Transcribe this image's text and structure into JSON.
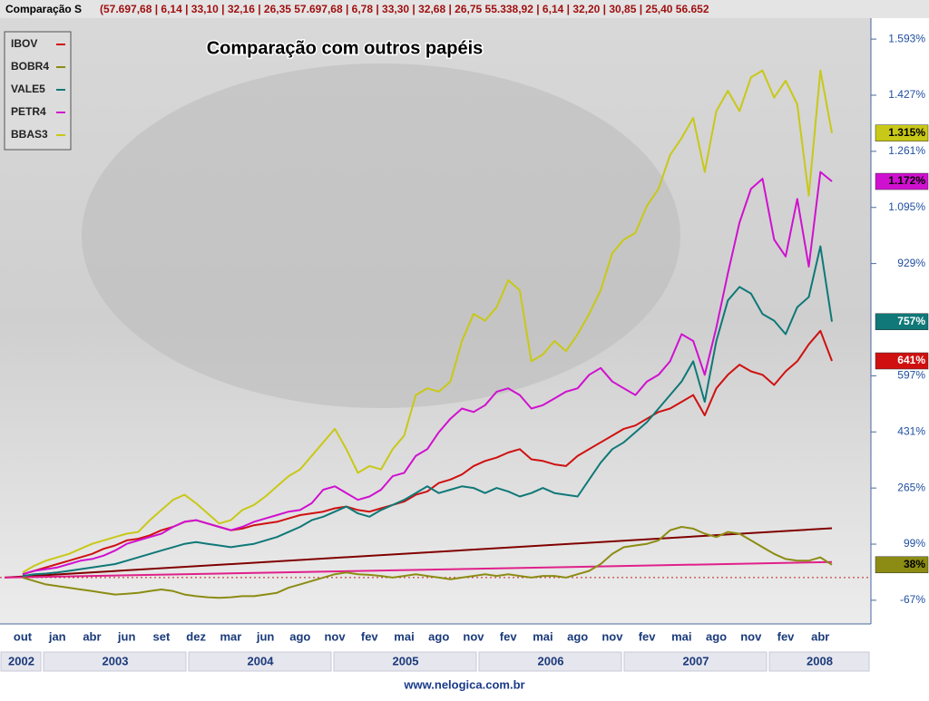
{
  "header": {
    "label": "Comparação S",
    "values": "(57.697,68 | 6,14 | 33,10 | 32,16 | 26,35  57.697,68 | 6,78 | 33,30 | 32,68 | 26,75  55.338,92 | 6,14 | 32,20 | 30,85 | 25,40  56.652"
  },
  "footer": "www.nelogica.com.br",
  "chart_data": {
    "type": "line",
    "title": "Comparação com outros papéis",
    "categories": [
      "out",
      null,
      null,
      "jan",
      null,
      null,
      "abr",
      null,
      null,
      "jun",
      null,
      null,
      "set",
      null,
      null,
      "dez",
      null,
      null,
      "mar",
      null,
      null,
      "jun",
      null,
      null,
      "ago",
      null,
      null,
      "nov",
      null,
      null,
      "fev",
      null,
      null,
      "mai",
      null,
      null,
      "ago",
      null,
      null,
      "nov",
      null,
      null,
      "fev",
      null,
      null,
      "mai",
      null,
      null,
      "ago",
      null,
      null,
      "nov",
      null,
      null,
      "fev",
      null,
      null,
      "mai",
      null,
      null,
      "ago",
      null,
      null,
      "nov",
      null,
      null,
      "fev",
      null,
      null,
      "abr",
      null
    ],
    "x_years": [
      "2002",
      "2003",
      "2004",
      "2005",
      "2006",
      "2007",
      "2008"
    ],
    "ylim": [
      -137,
      1655
    ],
    "yticks": [
      {
        "value": -67,
        "label": "-67%"
      },
      {
        "value": 99,
        "label": "99%"
      },
      {
        "value": 265,
        "label": "265%"
      },
      {
        "value": 431,
        "label": "431%"
      },
      {
        "value": 597,
        "label": "597%"
      },
      {
        "value": 929,
        "label": "929%"
      },
      {
        "value": 1095,
        "label": "1.095%"
      },
      {
        "value": 1261,
        "label": "1.261%"
      },
      {
        "value": 1427,
        "label": "1.427%"
      },
      {
        "value": 1593,
        "label": "1.593%"
      }
    ],
    "series": [
      {
        "name": "IBOV",
        "color": "#d01010",
        "end_label": "641%",
        "label_text_color": "#ffffff",
        "values": [
          10,
          20,
          30,
          40,
          50,
          60,
          70,
          85,
          95,
          110,
          115,
          125,
          140,
          150,
          165,
          170,
          160,
          150,
          140,
          145,
          155,
          160,
          165,
          175,
          185,
          190,
          195,
          205,
          210,
          200,
          195,
          205,
          215,
          225,
          245,
          255,
          280,
          290,
          305,
          330,
          345,
          355,
          370,
          380,
          350,
          345,
          335,
          330,
          360,
          380,
          400,
          420,
          440,
          450,
          470,
          490,
          500,
          520,
          540,
          480,
          560,
          600,
          630,
          610,
          600,
          570,
          610,
          640,
          690,
          730,
          641
        ]
      },
      {
        "name": "BOBR4",
        "color": "#8c8c14",
        "end_label": "38%",
        "label_text_color": "#000000",
        "values": [
          0,
          -10,
          -20,
          -25,
          -30,
          -35,
          -40,
          -45,
          -50,
          -48,
          -45,
          -40,
          -35,
          -40,
          -50,
          -55,
          -58,
          -60,
          -58,
          -55,
          -55,
          -50,
          -45,
          -30,
          -20,
          -10,
          0,
          10,
          15,
          10,
          8,
          5,
          0,
          5,
          10,
          5,
          0,
          -5,
          0,
          5,
          10,
          5,
          10,
          5,
          0,
          5,
          5,
          0,
          10,
          20,
          40,
          70,
          90,
          95,
          100,
          110,
          140,
          150,
          145,
          130,
          120,
          135,
          130,
          110,
          90,
          70,
          55,
          50,
          50,
          60,
          38
        ]
      },
      {
        "name": "VALE5",
        "color": "#107878",
        "end_label": "757%",
        "label_text_color": "#ffffff",
        "values": [
          5,
          10,
          12,
          15,
          20,
          25,
          30,
          35,
          40,
          50,
          60,
          70,
          80,
          90,
          100,
          105,
          100,
          95,
          90,
          95,
          100,
          110,
          120,
          135,
          150,
          170,
          180,
          195,
          210,
          190,
          180,
          200,
          215,
          230,
          250,
          270,
          250,
          260,
          270,
          265,
          250,
          265,
          255,
          240,
          250,
          265,
          250,
          245,
          240,
          290,
          340,
          380,
          400,
          430,
          460,
          500,
          540,
          580,
          640,
          520,
          700,
          820,
          860,
          840,
          780,
          760,
          720,
          800,
          830,
          980,
          757
        ]
      },
      {
        "name": "PETR4",
        "color": "#d010d0",
        "end_label": "1.172%",
        "label_text_color": "#000000",
        "values": [
          10,
          20,
          25,
          30,
          40,
          50,
          55,
          65,
          80,
          100,
          110,
          120,
          130,
          150,
          165,
          170,
          160,
          150,
          140,
          150,
          165,
          175,
          185,
          195,
          200,
          220,
          260,
          270,
          250,
          230,
          240,
          260,
          300,
          310,
          360,
          380,
          430,
          470,
          500,
          490,
          510,
          550,
          560,
          540,
          500,
          510,
          530,
          550,
          560,
          600,
          620,
          580,
          560,
          540,
          580,
          600,
          640,
          720,
          700,
          600,
          740,
          900,
          1050,
          1150,
          1180,
          1000,
          950,
          1120,
          920,
          1200,
          1172
        ]
      },
      {
        "name": "BBAS3",
        "color": "#c8c818",
        "end_label": "1.315%",
        "label_text_color": "#000000",
        "values": [
          15,
          35,
          50,
          60,
          70,
          85,
          100,
          110,
          120,
          130,
          135,
          170,
          200,
          230,
          245,
          220,
          190,
          160,
          170,
          200,
          215,
          240,
          270,
          300,
          320,
          360,
          400,
          440,
          380,
          310,
          330,
          320,
          380,
          420,
          540,
          560,
          550,
          580,
          700,
          780,
          760,
          800,
          880,
          850,
          640,
          660,
          700,
          670,
          720,
          780,
          850,
          960,
          1000,
          1020,
          1100,
          1150,
          1250,
          1300,
          1360,
          1200,
          1380,
          1440,
          1380,
          1480,
          1500,
          1420,
          1470,
          1400,
          1130,
          1500,
          1315
        ]
      }
    ],
    "trend_lines": [
      {
        "color": "#800000",
        "values": [
          0,
          146
        ]
      },
      {
        "color": "#e0208a",
        "values": [
          0,
          46
        ]
      }
    ]
  }
}
